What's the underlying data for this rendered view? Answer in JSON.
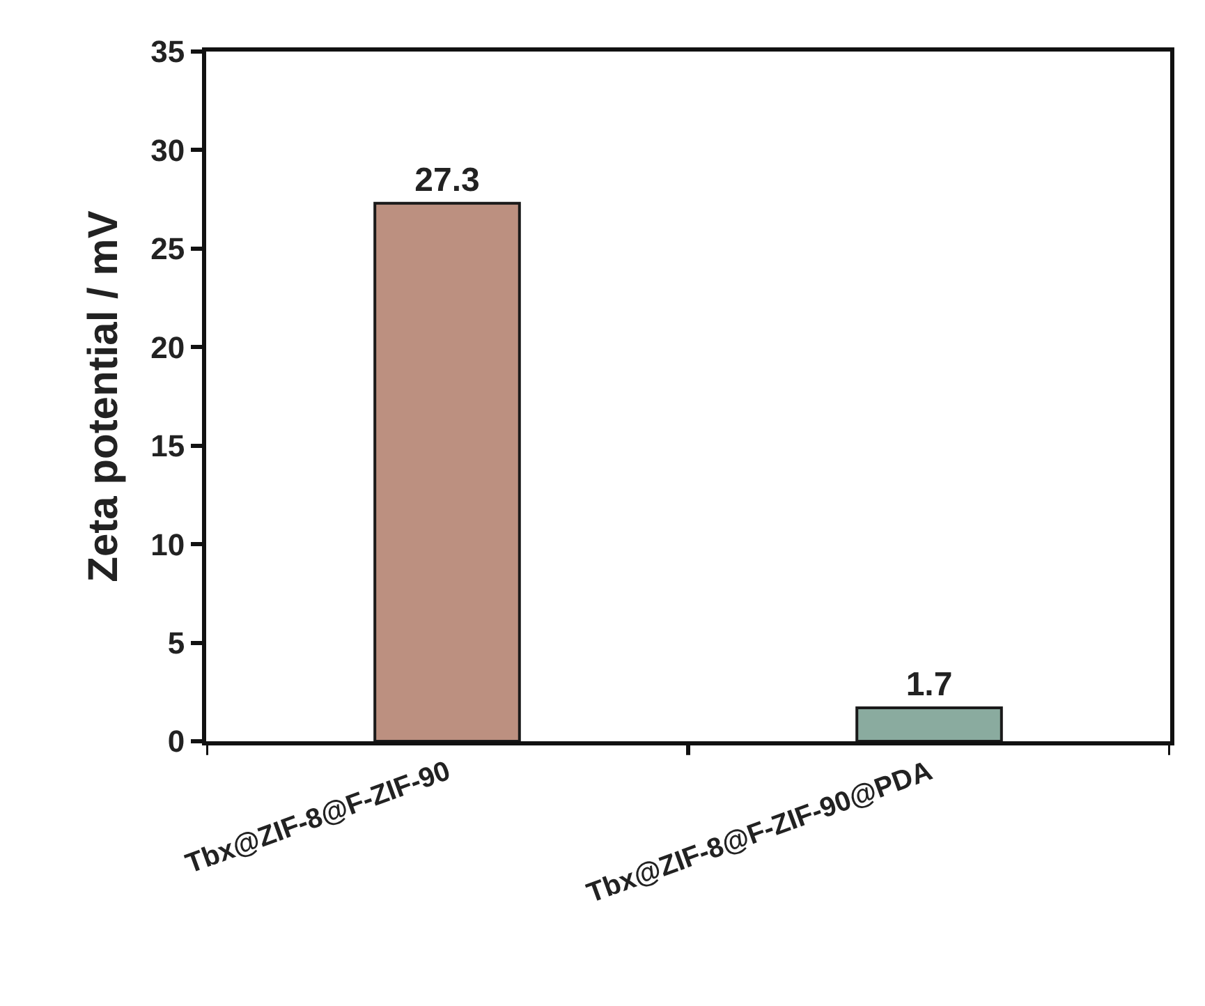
{
  "chart_data": {
    "type": "bar",
    "ylabel": "Zeta potential / mV",
    "categories": [
      "Tbx@ZIF-8@F-ZIF-90",
      "Tbx@ZIF-8@F-ZIF-90@PDA"
    ],
    "values": [
      27.3,
      1.7
    ],
    "colors": [
      "#bc9080",
      "#8aab9f"
    ],
    "ylim": [
      0,
      35
    ],
    "yticks": [
      0,
      5,
      10,
      15,
      20,
      25,
      30,
      35
    ],
    "data_labels": true
  }
}
